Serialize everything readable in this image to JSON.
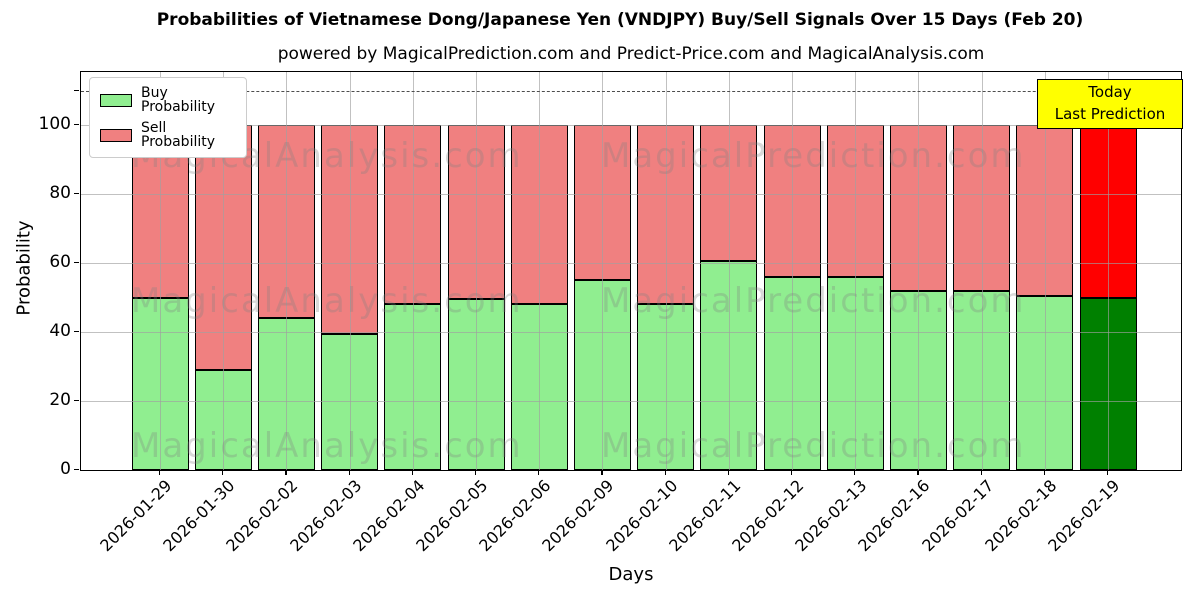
{
  "title": "Probabilities of Vietnamese Dong/Japanese Yen (VNDJPY) Buy/Sell Signals Over 15 Days (Feb 20)",
  "subtitle": "powered by MagicalPrediction.com and Predict-Price.com and MagicalAnalysis.com",
  "annotation": {
    "line1": "Today",
    "line2": "Last Prediction",
    "bg_color": "#ffff00",
    "border_color": "#000000"
  },
  "legend": {
    "items": [
      {
        "label": "Buy Probability",
        "color": "#90ee90"
      },
      {
        "label": "Sell Probability",
        "color": "#f08080"
      }
    ]
  },
  "watermarks": {
    "left": "MagicalAnalysis.com",
    "right": "MagicalPrediction.com"
  },
  "chart_data": {
    "type": "bar",
    "stacked": true,
    "title": "Probabilities of Vietnamese Dong/Japanese Yen (VNDJPY) Buy/Sell Signals Over 15 Days (Feb 20)",
    "xlabel": "Days",
    "ylabel": "Probability",
    "categories": [
      "2026-01-29",
      "2026-01-30",
      "2026-02-02",
      "2026-02-03",
      "2026-02-04",
      "2026-02-05",
      "2026-02-06",
      "2026-02-09",
      "2026-02-10",
      "2026-02-11",
      "2026-02-12",
      "2026-02-13",
      "2026-02-16",
      "2026-02-17",
      "2026-02-18",
      "2026-02-19"
    ],
    "series": [
      {
        "name": "Buy Probability",
        "color": "#90ee90",
        "last_bar_color": "#008000",
        "values": [
          50,
          29,
          44,
          39.5,
          48,
          49.5,
          48,
          55,
          48,
          60.5,
          56,
          56,
          52,
          52,
          50.5,
          50
        ]
      },
      {
        "name": "Sell Probability",
        "color": "#f08080",
        "last_bar_color": "#ff0000",
        "values": [
          50,
          71,
          56,
          60.5,
          52,
          50.5,
          52,
          45,
          52,
          39.5,
          44,
          44,
          48,
          48,
          49.5,
          50
        ]
      }
    ],
    "bar_edge_color": "#000000",
    "yticks": [
      0,
      20,
      40,
      60,
      80,
      100
    ],
    "ylim": [
      0,
      115.4
    ],
    "dashed_line_y": 110,
    "grid": true,
    "legend_position": "upper left"
  }
}
